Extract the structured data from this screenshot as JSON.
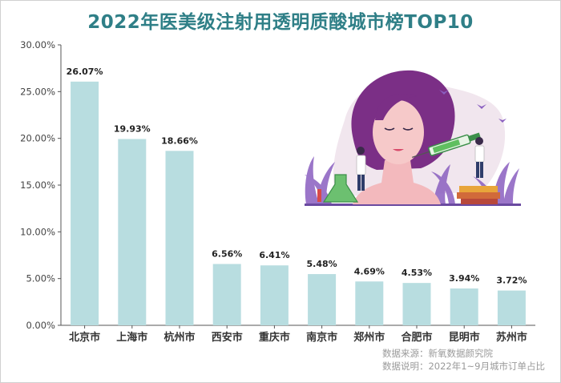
{
  "title": "2022年医美级注射用透明质酸城市榜TOP10",
  "source": {
    "line1": "数据来源：新氧数据颜究院",
    "line2": "数据说明：2022年1~9月城市订单占比"
  },
  "colors": {
    "bar": "#b8dde0",
    "title": "#2f7f87",
    "axis": "#555555",
    "illustration_face": "#f6c9c9",
    "illustration_hair": "#7b2f86",
    "illustration_plants": "#8a5fc0"
  },
  "illustration": "woman-receiving-facial-injection",
  "chart_data": {
    "type": "bar",
    "title": "2022年医美级注射用透明质酸城市榜TOP10",
    "xlabel": "",
    "ylabel": "",
    "categories": [
      "北京市",
      "上海市",
      "杭州市",
      "西安市",
      "重庆市",
      "南京市",
      "郑州市",
      "合肥市",
      "昆明市",
      "苏州市"
    ],
    "values": [
      26.07,
      19.93,
      18.66,
      6.56,
      6.41,
      5.48,
      4.69,
      4.53,
      3.94,
      3.72
    ],
    "data_labels": [
      "26.07%",
      "19.93%",
      "18.66%",
      "6.56%",
      "6.41%",
      "5.48%",
      "4.69%",
      "4.53%",
      "3.94%",
      "3.72%"
    ],
    "ylim": [
      0,
      30
    ],
    "yticks": [
      0,
      5,
      10,
      15,
      20,
      25,
      30
    ],
    "ytick_labels": [
      "0.00%",
      "5.00%",
      "10.00%",
      "15.00%",
      "20.00%",
      "25.00%",
      "30.00%"
    ],
    "grid": false,
    "legend": "none"
  }
}
